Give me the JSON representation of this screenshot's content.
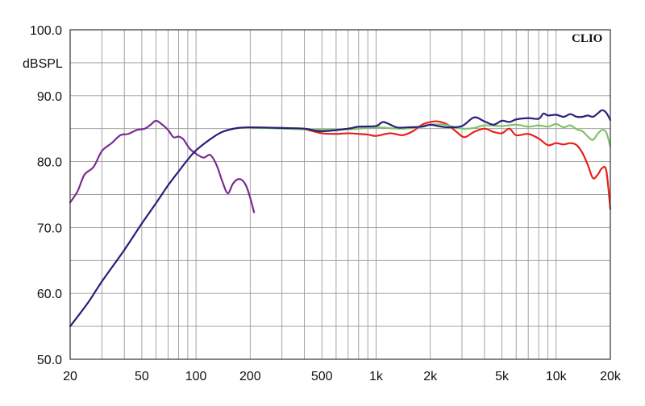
{
  "chart_data": {
    "type": "line",
    "ylabel": "dBSPL",
    "xscale": "log",
    "xlim": [
      20,
      20000
    ],
    "ylim": [
      50,
      100
    ],
    "grid": true,
    "watermark": "CLIO",
    "x_ticks": [
      {
        "value": 20,
        "label": "20"
      },
      {
        "value": 50,
        "label": "50"
      },
      {
        "value": 100,
        "label": "100"
      },
      {
        "value": 200,
        "label": "200"
      },
      {
        "value": 500,
        "label": "500"
      },
      {
        "value": 1000,
        "label": "1k"
      },
      {
        "value": 2000,
        "label": "2k"
      },
      {
        "value": 5000,
        "label": "5k"
      },
      {
        "value": 10000,
        "label": "10k"
      },
      {
        "value": 20000,
        "label": "20k"
      }
    ],
    "y_ticks": [
      {
        "value": 100,
        "label": "100.0"
      },
      {
        "value": 90,
        "label": "90.0"
      },
      {
        "value": 80,
        "label": "80.0"
      },
      {
        "value": 70,
        "label": "70.0"
      },
      {
        "value": 60,
        "label": "60.0"
      },
      {
        "value": 50,
        "label": "50.0"
      }
    ],
    "series": [
      {
        "color": "#7b2b93",
        "points": [
          [
            20,
            73.8
          ],
          [
            22,
            75.5
          ],
          [
            24,
            78
          ],
          [
            27,
            79.2
          ],
          [
            30,
            81.6
          ],
          [
            34,
            82.8
          ],
          [
            38,
            84
          ],
          [
            42,
            84.2
          ],
          [
            47,
            84.8
          ],
          [
            52,
            85
          ],
          [
            56,
            85.6
          ],
          [
            60,
            86.2
          ],
          [
            65,
            85.6
          ],
          [
            70,
            84.8
          ],
          [
            75,
            83.7
          ],
          [
            80,
            83.8
          ],
          [
            85,
            83.4
          ],
          [
            92,
            82
          ],
          [
            100,
            81.2
          ],
          [
            110,
            80.6
          ],
          [
            120,
            81
          ],
          [
            130,
            79.5
          ],
          [
            140,
            77
          ],
          [
            150,
            75.2
          ],
          [
            160,
            76.6
          ],
          [
            170,
            77.3
          ],
          [
            180,
            77.2
          ],
          [
            190,
            76.3
          ],
          [
            200,
            74.5
          ],
          [
            210,
            72.3
          ]
        ]
      },
      {
        "color": "#e8201a",
        "points": [
          [
            200,
            85.2
          ],
          [
            300,
            85.1
          ],
          [
            400,
            84.9
          ],
          [
            500,
            84.3
          ],
          [
            600,
            84.2
          ],
          [
            700,
            84.3
          ],
          [
            800,
            84.2
          ],
          [
            900,
            84.1
          ],
          [
            1000,
            83.9
          ],
          [
            1200,
            84.3
          ],
          [
            1400,
            84
          ],
          [
            1600,
            84.6
          ],
          [
            1800,
            85.6
          ],
          [
            2000,
            86
          ],
          [
            2200,
            86.1
          ],
          [
            2500,
            85.6
          ],
          [
            2800,
            84.5
          ],
          [
            3100,
            83.7
          ],
          [
            3500,
            84.5
          ],
          [
            4000,
            85
          ],
          [
            4500,
            84.5
          ],
          [
            5000,
            84.3
          ],
          [
            5500,
            85
          ],
          [
            6000,
            84
          ],
          [
            7000,
            84.2
          ],
          [
            8000,
            83.5
          ],
          [
            9000,
            82.5
          ],
          [
            10000,
            82.8
          ],
          [
            11000,
            82.6
          ],
          [
            12000,
            82.8
          ],
          [
            13000,
            82.5
          ],
          [
            14000,
            81.3
          ],
          [
            15000,
            79.5
          ],
          [
            16000,
            77.5
          ],
          [
            17000,
            78
          ],
          [
            18000,
            79
          ],
          [
            19000,
            78.6
          ],
          [
            20000,
            72.8
          ]
        ]
      },
      {
        "color": "#7ec46a",
        "points": [
          [
            200,
            85.2
          ],
          [
            400,
            84.9
          ],
          [
            700,
            84.9
          ],
          [
            1000,
            85.2
          ],
          [
            1300,
            85
          ],
          [
            1600,
            85.1
          ],
          [
            2000,
            85.6
          ],
          [
            2400,
            85.6
          ],
          [
            3000,
            85
          ],
          [
            3500,
            85.1
          ],
          [
            4000,
            85.5
          ],
          [
            5000,
            85.4
          ],
          [
            6000,
            85.6
          ],
          [
            7000,
            85.3
          ],
          [
            8000,
            85.5
          ],
          [
            9000,
            85.3
          ],
          [
            10000,
            85.7
          ],
          [
            11000,
            85.2
          ],
          [
            12000,
            85.5
          ],
          [
            13000,
            84.9
          ],
          [
            14000,
            84.6
          ],
          [
            15000,
            83.8
          ],
          [
            16000,
            83.3
          ],
          [
            17000,
            84.2
          ],
          [
            18000,
            84.8
          ],
          [
            19000,
            84.4
          ],
          [
            20000,
            82.3
          ]
        ]
      },
      {
        "color": "#2a1f7a",
        "points": [
          [
            20,
            55
          ],
          [
            25,
            58.5
          ],
          [
            30,
            61.8
          ],
          [
            40,
            66.6
          ],
          [
            50,
            70.6
          ],
          [
            60,
            73.7
          ],
          [
            70,
            76.4
          ],
          [
            80,
            78.5
          ],
          [
            90,
            80.3
          ],
          [
            100,
            81.7
          ],
          [
            120,
            83.4
          ],
          [
            140,
            84.5
          ],
          [
            170,
            85.1
          ],
          [
            200,
            85.2
          ],
          [
            300,
            85.1
          ],
          [
            400,
            85
          ],
          [
            500,
            84.6
          ],
          [
            700,
            85
          ],
          [
            800,
            85.3
          ],
          [
            1000,
            85.4
          ],
          [
            1100,
            86
          ],
          [
            1300,
            85.2
          ],
          [
            1500,
            85.2
          ],
          [
            1800,
            85.3
          ],
          [
            2000,
            85.6
          ],
          [
            2200,
            85.4
          ],
          [
            2500,
            85.2
          ],
          [
            3000,
            85.4
          ],
          [
            3500,
            86.7
          ],
          [
            4000,
            86.1
          ],
          [
            4500,
            85.6
          ],
          [
            5000,
            86.2
          ],
          [
            5500,
            86
          ],
          [
            6000,
            86.4
          ],
          [
            7000,
            86.6
          ],
          [
            8000,
            86.5
          ],
          [
            8500,
            87.3
          ],
          [
            9000,
            87
          ],
          [
            10000,
            87.1
          ],
          [
            11000,
            86.8
          ],
          [
            12000,
            87.2
          ],
          [
            13000,
            86.8
          ],
          [
            14000,
            86.8
          ],
          [
            15000,
            87
          ],
          [
            16000,
            86.8
          ],
          [
            17000,
            87.3
          ],
          [
            18000,
            87.8
          ],
          [
            19000,
            87.4
          ],
          [
            20000,
            86.3
          ]
        ]
      }
    ]
  }
}
